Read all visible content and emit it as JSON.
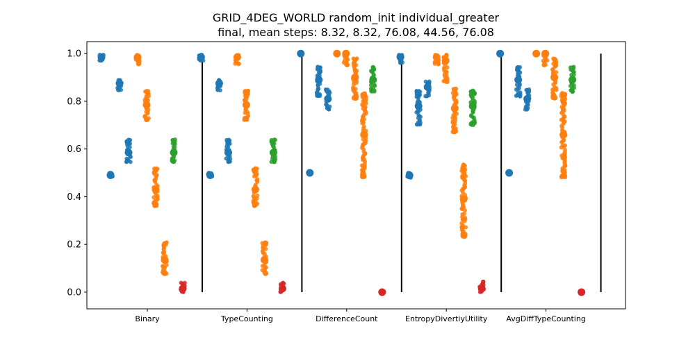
{
  "chart_data": {
    "type": "strip",
    "title": "GRID_4DEG_WORLD random_init individual_greater",
    "subtitle": "final, mean steps: 8.32, 8.32, 76.08, 44.56, 76.08",
    "xlabel": "",
    "ylabel": "",
    "ylim": [
      -0.07,
      1.05
    ],
    "yticks": [
      "0.0",
      "0.2",
      "0.4",
      "0.6",
      "0.8",
      "1.0"
    ],
    "categories": [
      "Binary",
      "TypeCounting",
      "DifferenceCount",
      "EntropyDivertiyUtility",
      "AvgDiffTypeCounting"
    ],
    "colors": {
      "blue": "#1f77b4",
      "orange": "#ff7f0e",
      "green": "#2ca02c",
      "red": "#d62728"
    },
    "groups": [
      {
        "category": "Binary",
        "strips": [
          {
            "color": "blue",
            "mean": 0.985,
            "min": 0.97,
            "max": 0.995
          },
          {
            "color": "blue",
            "mean": 0.49,
            "min": 0.485,
            "max": 0.5
          },
          {
            "color": "blue",
            "mean": 0.875,
            "min": 0.845,
            "max": 0.89
          },
          {
            "color": "blue",
            "mean": 0.585,
            "min": 0.545,
            "max": 0.64
          },
          {
            "color": "orange",
            "mean": 0.985,
            "min": 0.955,
            "max": 0.995
          },
          {
            "color": "orange",
            "mean": 0.785,
            "min": 0.72,
            "max": 0.845
          },
          {
            "color": "orange",
            "mean": 0.43,
            "min": 0.36,
            "max": 0.52
          },
          {
            "color": "orange",
            "mean": 0.135,
            "min": 0.075,
            "max": 0.21
          },
          {
            "color": "green",
            "mean": 0.585,
            "min": 0.545,
            "max": 0.64
          },
          {
            "color": "red",
            "mean": 0.015,
            "min": 0.0,
            "max": 0.04
          }
        ]
      },
      {
        "category": "TypeCounting",
        "strips": [
          {
            "color": "blue",
            "mean": 0.985,
            "min": 0.97,
            "max": 0.995
          },
          {
            "color": "blue",
            "mean": 0.49,
            "min": 0.485,
            "max": 0.5
          },
          {
            "color": "blue",
            "mean": 0.875,
            "min": 0.845,
            "max": 0.89
          },
          {
            "color": "blue",
            "mean": 0.585,
            "min": 0.545,
            "max": 0.64
          },
          {
            "color": "orange",
            "mean": 0.985,
            "min": 0.955,
            "max": 0.995
          },
          {
            "color": "orange",
            "mean": 0.785,
            "min": 0.72,
            "max": 0.845
          },
          {
            "color": "orange",
            "mean": 0.43,
            "min": 0.36,
            "max": 0.52
          },
          {
            "color": "orange",
            "mean": 0.135,
            "min": 0.075,
            "max": 0.21
          },
          {
            "color": "green",
            "mean": 0.585,
            "min": 0.545,
            "max": 0.64
          },
          {
            "color": "red",
            "mean": 0.015,
            "min": 0.0,
            "max": 0.04
          }
        ]
      },
      {
        "category": "DifferenceCount",
        "strips": [
          {
            "color": "blue",
            "mean": 1.0,
            "min": 1.0,
            "max": 1.0
          },
          {
            "color": "blue",
            "mean": 0.5,
            "min": 0.5,
            "max": 0.5
          },
          {
            "color": "blue",
            "mean": 0.89,
            "min": 0.82,
            "max": 0.945
          },
          {
            "color": "blue",
            "mean": 0.81,
            "min": 0.765,
            "max": 0.85
          },
          {
            "color": "orange",
            "mean": 1.0,
            "min": 1.0,
            "max": 1.0
          },
          {
            "color": "orange",
            "mean": 1.0,
            "min": 0.95,
            "max": 1.0
          },
          {
            "color": "orange",
            "mean": 0.9,
            "min": 0.81,
            "max": 0.98
          },
          {
            "color": "orange",
            "mean": 0.66,
            "min": 0.48,
            "max": 0.835
          },
          {
            "color": "green",
            "mean": 0.89,
            "min": 0.84,
            "max": 0.945
          },
          {
            "color": "red",
            "mean": 0.0,
            "min": 0.0,
            "max": 0.0
          }
        ]
      },
      {
        "category": "EntropyDivertiyUtility",
        "strips": [
          {
            "color": "blue",
            "mean": 0.985,
            "min": 0.96,
            "max": 0.995
          },
          {
            "color": "blue",
            "mean": 0.49,
            "min": 0.48,
            "max": 0.5
          },
          {
            "color": "blue",
            "mean": 0.78,
            "min": 0.7,
            "max": 0.845
          },
          {
            "color": "blue",
            "mean": 0.86,
            "min": 0.82,
            "max": 0.885
          },
          {
            "color": "orange",
            "mean": 0.985,
            "min": 0.955,
            "max": 0.995
          },
          {
            "color": "orange",
            "mean": 0.97,
            "min": 0.88,
            "max": 0.995
          },
          {
            "color": "orange",
            "mean": 0.77,
            "min": 0.67,
            "max": 0.855
          },
          {
            "color": "orange",
            "mean": 0.39,
            "min": 0.23,
            "max": 0.535
          },
          {
            "color": "green",
            "mean": 0.78,
            "min": 0.7,
            "max": 0.845
          },
          {
            "color": "red",
            "mean": 0.015,
            "min": 0.0,
            "max": 0.045
          }
        ]
      },
      {
        "category": "AvgDiffTypeCounting",
        "strips": [
          {
            "color": "blue",
            "mean": 1.0,
            "min": 1.0,
            "max": 1.0
          },
          {
            "color": "blue",
            "mean": 0.5,
            "min": 0.5,
            "max": 0.5
          },
          {
            "color": "blue",
            "mean": 0.89,
            "min": 0.82,
            "max": 0.945
          },
          {
            "color": "blue",
            "mean": 0.81,
            "min": 0.765,
            "max": 0.85
          },
          {
            "color": "orange",
            "mean": 1.0,
            "min": 1.0,
            "max": 1.0
          },
          {
            "color": "orange",
            "mean": 1.0,
            "min": 0.95,
            "max": 1.0
          },
          {
            "color": "orange",
            "mean": 0.9,
            "min": 0.81,
            "max": 0.98
          },
          {
            "color": "orange",
            "mean": 0.66,
            "min": 0.48,
            "max": 0.835
          },
          {
            "color": "green",
            "mean": 0.89,
            "min": 0.84,
            "max": 0.945
          },
          {
            "color": "red",
            "mean": 0.0,
            "min": 0.0,
            "max": 0.0
          }
        ]
      }
    ],
    "grid": false,
    "legend": "none"
  }
}
